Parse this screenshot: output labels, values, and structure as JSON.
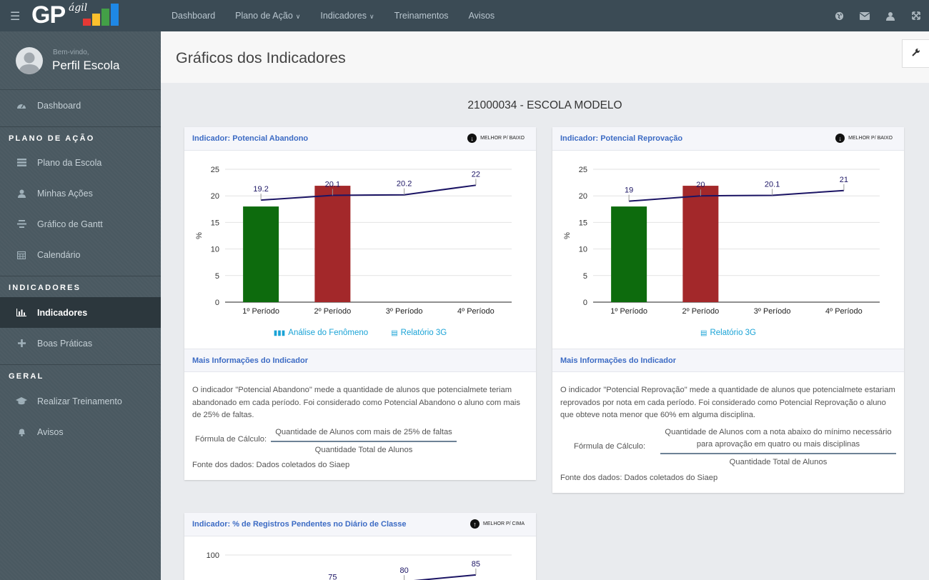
{
  "app": {
    "logo_text": "GP",
    "logo_sub": "ágil"
  },
  "topnav": [
    {
      "label": "Dashboard",
      "dropdown": false
    },
    {
      "label": "Plano de Ação",
      "dropdown": true
    },
    {
      "label": "Indicadores",
      "dropdown": true
    },
    {
      "label": "Treinamentos",
      "dropdown": false
    },
    {
      "label": "Avisos",
      "dropdown": false
    }
  ],
  "top_icons": [
    "globe-icon",
    "envelope-icon",
    "user-icon",
    "fullscreen-icon"
  ],
  "profile": {
    "welcome": "Bem-vindo,",
    "name": "Perfil Escola"
  },
  "sidebar": {
    "dashboard": "Dashboard",
    "section_plano": "PLANO DE AÇÃO",
    "plano_escola": "Plano da Escola",
    "minhas_acoes": "Minhas Ações",
    "gantt": "Gráfico de Gantt",
    "calendario": "Calendário",
    "section_indicadores": "INDICADORES",
    "indicadores": "Indicadores",
    "boas_praticas": "Boas Práticas",
    "section_geral": "GERAL",
    "treinamento": "Realizar Treinamento",
    "avisos": "Avisos"
  },
  "page": {
    "title": "Gráficos dos Indicadores",
    "school": "21000034 - ESCOLA MODELO"
  },
  "colors": {
    "green": "#0d6b0d",
    "red": "#a3282a",
    "line": "#1b1464",
    "accent": "#3c6bc4",
    "link": "#1aa3d6"
  },
  "panels": {
    "abandono": {
      "title": "Indicador: Potencial Abandono",
      "badge": "MELHOR P/ BAIXO",
      "badge_dir": "down",
      "link_analise": "Análise do Fenômeno",
      "link_relatorio": "Relatório 3G",
      "info_title": "Mais Informações do Indicador",
      "info_text": "O indicador \"Potencial Abandono\" mede a quantidade de alunos que potencialmete teriam abandonado em cada período. Foi considerado como Potencial Abandono o aluno com mais de 25% de faltas.",
      "formula_label": "Fórmula de Cálculo:",
      "formula_num": "Quantidade de Alunos com mais de 25% de faltas",
      "formula_den": "Quantidade Total de Alunos",
      "source": "Fonte dos dados: Dados coletados do Siaep"
    },
    "reprovacao": {
      "title": "Indicador: Potencial Reprovação",
      "badge": "MELHOR P/ BAIXO",
      "badge_dir": "down",
      "link_relatorio": "Relatório 3G",
      "info_title": "Mais Informações do Indicador",
      "info_text": "O indicador \"Potencial Reprovação\" mede a quantidade de alunos que potencialmete estariam reprovados por nota em cada período. Foi considerado como Potencial Reprovação o aluno que obteve nota menor que 60% em alguma disciplina.",
      "formula_label": "Fórmula de Cálculo:",
      "formula_num": "Quantidade de Alunos com a nota abaixo do mínimo necessário para aprovação em quatro ou mais disciplinas",
      "formula_den": "Quantidade Total de Alunos",
      "source": "Fonte dos dados: Dados coletados do Siaep"
    },
    "registros": {
      "title": "Indicador: % de Registros Pendentes no Diário de Classe",
      "badge": "MELHOR P/ CIMA",
      "badge_dir": "up"
    }
  },
  "chart_data": [
    {
      "type": "bar",
      "title": "Indicador: Potencial Abandono",
      "ylabel": "%",
      "ylim": [
        0,
        25
      ],
      "yticks": [
        0,
        5,
        10,
        15,
        20,
        25
      ],
      "categories": [
        "1º Período",
        "2º Período",
        "3º Período",
        "4º Período"
      ],
      "bars": [
        18,
        21.9,
        null,
        null
      ],
      "bar_colors": [
        "#0d6b0d",
        "#a3282a"
      ],
      "line": {
        "values": [
          19.2,
          20.1,
          20.2,
          22
        ],
        "labels": [
          "19.2",
          "20.1",
          "20.2",
          "22"
        ],
        "color": "#1b1464"
      },
      "grid": true
    },
    {
      "type": "bar",
      "title": "Indicador: Potencial Reprovação",
      "ylabel": "%",
      "ylim": [
        0,
        25
      ],
      "yticks": [
        0,
        5,
        10,
        15,
        20,
        25
      ],
      "categories": [
        "1º Período",
        "2º Período",
        "3º Período",
        "4º Período"
      ],
      "bars": [
        18,
        21.9,
        null,
        null
      ],
      "bar_colors": [
        "#0d6b0d",
        "#a3282a"
      ],
      "line": {
        "values": [
          19,
          20,
          20.1,
          21
        ],
        "labels": [
          "19",
          "20",
          "20.1",
          "21"
        ],
        "color": "#1b1464"
      },
      "grid": true
    },
    {
      "type": "line",
      "title": "Indicador: % de Registros Pendentes no Diário de Classe",
      "ylim": [
        0,
        100
      ],
      "yticks": [
        100
      ],
      "line": {
        "values": [
          null,
          75,
          80,
          85
        ],
        "labels": [
          "",
          "75",
          "80",
          "85"
        ],
        "color": "#1b1464"
      },
      "grid": true
    }
  ]
}
